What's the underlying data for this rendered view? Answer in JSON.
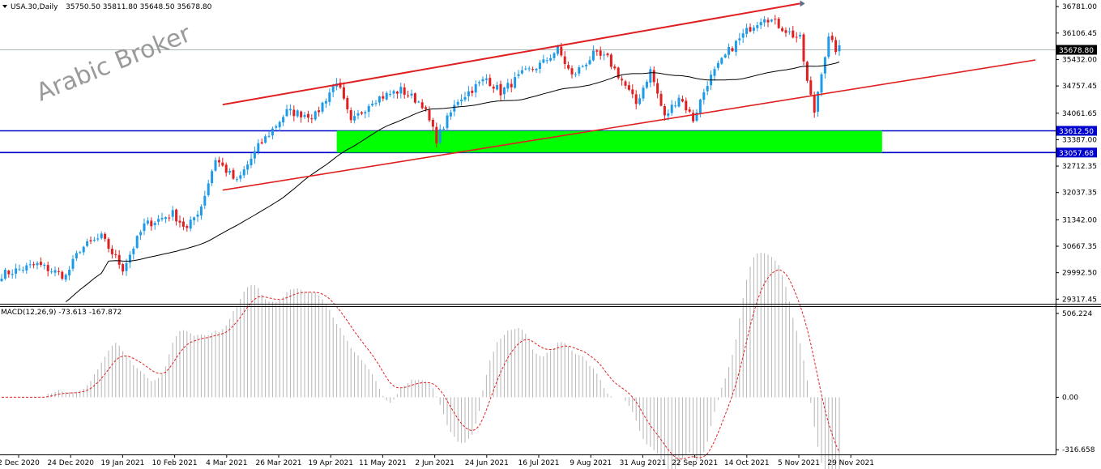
{
  "header": {
    "symbol": "USA.30,Daily",
    "ohlc": "35750.50 35811.80 35648.50 35678.80"
  },
  "watermark": "Arabic Broker",
  "colors": {
    "bull": "#1e9be8",
    "bear": "#e02020",
    "zone": "#00ff00",
    "channel": "#e02020",
    "hline": "#0000cc",
    "ma": "#000000",
    "macd_hist": "#b4b4b4",
    "macd_signal": "#e02020"
  },
  "chart_data": [
    {
      "type": "candlestick",
      "price_axis": {
        "range": [
          29200,
          36950
        ],
        "tick_labels": [
          "36781.00",
          "36106.45",
          "35432.00",
          "34757.45",
          "34061.65",
          "33387.00",
          "32712.35",
          "32037.35",
          "31342.00",
          "30667.35",
          "29992.50",
          "29317.45"
        ]
      },
      "current_price": "35678.80",
      "horizontal_lines": [
        {
          "value": 33612.5,
          "label": "33612.50"
        },
        {
          "value": 33057.68,
          "label": "33057.68"
        }
      ],
      "zone": {
        "from_date_index": 94,
        "to_date_index": 247,
        "low": 33057.68,
        "high": 33612.5
      },
      "channel_upper": [
        {
          "i": 62,
          "v": 34280
        },
        {
          "i": 224,
          "v": 36860
        }
      ],
      "channel_lower": [
        {
          "i": 62,
          "v": 32100
        },
        {
          "i": 290,
          "v": 35420
        }
      ],
      "x_axis_labels": [
        "2 Dec 2020",
        "24 Dec 2020",
        "19 Jan 2021",
        "10 Feb 2021",
        "4 Mar 2021",
        "26 Mar 2021",
        "19 Apr 2021",
        "11 May 2021",
        "2 Jun 2021",
        "24 Jun 2021",
        "16 Jul 2021",
        "9 Aug 2021",
        "31 Aug 2021",
        "22 Sep 2021",
        "14 Oct 2021",
        "5 Nov 2021",
        "29 Nov 2021"
      ],
      "anchors": [
        [
          0,
          29950
        ],
        [
          10,
          30200
        ],
        [
          18,
          29900
        ],
        [
          22,
          30600
        ],
        [
          28,
          30900
        ],
        [
          34,
          30100
        ],
        [
          40,
          31200
        ],
        [
          48,
          31500
        ],
        [
          52,
          31100
        ],
        [
          56,
          31700
        ],
        [
          60,
          32900
        ],
        [
          66,
          32300
        ],
        [
          72,
          33200
        ],
        [
          80,
          34100
        ],
        [
          88,
          34000
        ],
        [
          94,
          34900
        ],
        [
          98,
          33800
        ],
        [
          104,
          34400
        ],
        [
          112,
          34650
        ],
        [
          118,
          34300
        ],
        [
          122,
          33400
        ],
        [
          128,
          34400
        ],
        [
          136,
          34950
        ],
        [
          140,
          34600
        ],
        [
          146,
          35050
        ],
        [
          152,
          35350
        ],
        [
          156,
          35700
        ],
        [
          160,
          35000
        ],
        [
          166,
          35550
        ],
        [
          170,
          35450
        ],
        [
          174,
          34900
        ],
        [
          178,
          34300
        ],
        [
          182,
          35150
        ],
        [
          186,
          33950
        ],
        [
          190,
          34500
        ],
        [
          194,
          33900
        ],
        [
          198,
          34850
        ],
        [
          204,
          35650
        ],
        [
          210,
          36250
        ],
        [
          214,
          36550
        ],
        [
          218,
          36300
        ],
        [
          222,
          36050
        ],
        [
          224,
          35950
        ],
        [
          226,
          34850
        ],
        [
          228,
          34100
        ],
        [
          230,
          35150
        ],
        [
          232,
          35950
        ],
        [
          234,
          35700
        ]
      ]
    },
    {
      "type": "macd",
      "label": "MACD(12,26,9) -73.613 -167.872",
      "axis": {
        "range": [
          -345,
          545
        ],
        "tick_labels": [
          "506.224",
          "0.00",
          "-316.658"
        ]
      }
    }
  ]
}
